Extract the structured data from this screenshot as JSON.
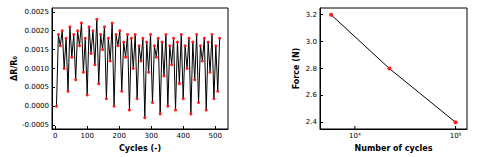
{
  "chart_data": [
    {
      "type": "line",
      "x_label": "Cycles (-)",
      "y_label": "ΔR/R₀",
      "x": [
        4,
        10,
        16,
        22,
        28,
        34,
        40,
        46,
        52,
        58,
        64,
        70,
        76,
        82,
        88,
        94,
        100,
        106,
        112,
        118,
        124,
        130,
        136,
        142,
        148,
        154,
        160,
        166,
        172,
        178,
        184,
        190,
        196,
        202,
        208,
        214,
        220,
        226,
        232,
        238,
        244,
        250,
        256,
        262,
        268,
        274,
        280,
        286,
        292,
        298,
        304,
        310,
        316,
        322,
        328,
        334,
        340,
        346,
        352,
        358,
        364,
        370,
        376,
        382,
        388,
        394,
        400,
        406,
        412,
        418,
        424,
        430,
        436,
        442,
        448,
        454,
        460,
        466,
        472,
        478,
        484,
        490,
        496,
        502,
        508,
        514
      ],
      "series": [
        {
          "color": "#000000",
          "marker": "circle",
          "line_style": "solid",
          "values": [
            0.0,
            0.0019,
            0.0016,
            0.002,
            0.001,
            0.0018,
            0.0004,
            0.0021,
            0.0013,
            0.0019,
            0.0007,
            0.002,
            0.0016,
            0.0022,
            0.0009,
            0.0018,
            0.0003,
            0.0021,
            0.0014,
            0.002,
            0.0011,
            0.0023,
            0.0006,
            0.0019,
            0.0015,
            0.0021,
            0.0002,
            0.0018,
            0.0012,
            0.0022,
            0.0,
            0.0019,
            0.0016,
            0.002,
            0.0004,
            0.0017,
            0.0013,
            0.0019,
            -0.0001,
            0.0018,
            0.001,
            0.0019,
            0.0002,
            0.0016,
            0.0012,
            0.0018,
            -0.0003,
            0.0017,
            0.0009,
            0.0019,
            0.0001,
            0.0016,
            0.0013,
            0.0018,
            -0.0002,
            0.0017,
            0.0008,
            0.0019,
            0.0,
            0.0016,
            0.0011,
            0.0018,
            -0.0001,
            0.0017,
            0.0006,
            0.0019,
            0.0002,
            0.0016,
            0.001,
            0.0018,
            -0.0002,
            0.0017,
            0.0007,
            0.0019,
            0.0001,
            0.0016,
            0.0012,
            0.0018,
            -0.0001,
            0.0017,
            0.0009,
            0.0019,
            0.0002,
            0.0016,
            0.0004,
            0.0018
          ]
        }
      ],
      "xlim": [
        -10,
        540
      ],
      "xticks": [
        0,
        100,
        200,
        300,
        400,
        500
      ],
      "ylim": [
        -0.0006,
        0.0026
      ],
      "yticks": [
        {
          "value": -0.0005,
          "label": "-0.0005"
        },
        {
          "value": 0,
          "label": "0.0000"
        },
        {
          "value": 0.0005,
          "label": "0.0005"
        },
        {
          "value": 0.001,
          "label": "0.0010"
        },
        {
          "value": 0.0015,
          "label": "0.0015"
        },
        {
          "value": 0.002,
          "label": "0.0020"
        },
        {
          "value": 0.0025,
          "label": "0.0025"
        }
      ],
      "grid": false
    },
    {
      "type": "line",
      "x_label": "Number of cycles",
      "y_label": "Force (N)",
      "x": [
        5800,
        22000,
        100000
      ],
      "series": [
        {
          "color": "#000000",
          "marker": "circle",
          "line_style": "solid",
          "values": [
            3.2,
            2.8,
            2.4
          ]
        }
      ],
      "log": "x",
      "xlim": [
        4500,
        130000
      ],
      "xticks": [
        {
          "value": 10000,
          "label": "10⁴"
        },
        {
          "value": 100000,
          "label": "10⁵"
        }
      ],
      "ylim": [
        2.35,
        3.25
      ],
      "yticks": [
        2.4,
        2.6,
        2.8,
        {
          "value": 3,
          "label": "3.0"
        },
        3.2
      ],
      "grid": false
    }
  ]
}
